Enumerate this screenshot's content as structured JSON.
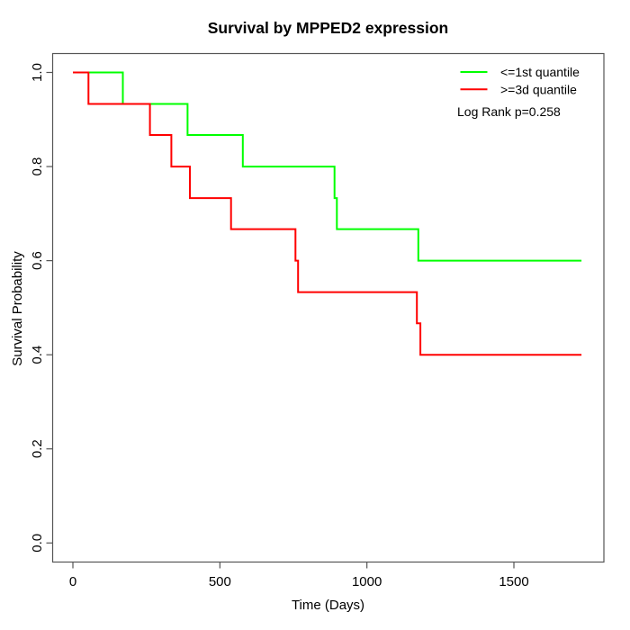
{
  "chart_data": {
    "type": "line",
    "subtype": "kaplan-meier-step",
    "title": "Survival by MPPED2 expression",
    "xlabel": "Time (Days)",
    "ylabel": "Survival Probability",
    "xlim": [
      0,
      1736
    ],
    "ylim": [
      0.0,
      1.0
    ],
    "grid": false,
    "x_ticks": [
      "0",
      "500",
      "1000",
      "1500"
    ],
    "y_ticks": [
      "0.0",
      "0.2",
      "0.4",
      "0.6",
      "0.8",
      "1.0"
    ],
    "legend_position": "top-right",
    "series": [
      {
        "name": "<=1st quantile",
        "color": "#00FF00",
        "points": [
          [
            0,
            1.0
          ],
          [
            170,
            0.933
          ],
          [
            390,
            0.867
          ],
          [
            578,
            0.8
          ],
          [
            890,
            0.733
          ],
          [
            898,
            0.667
          ],
          [
            1175,
            0.6
          ]
        ],
        "end_time": 1730
      },
      {
        "name": ">=3d quantile",
        "color": "#FF0000",
        "points": [
          [
            0,
            1.0
          ],
          [
            53,
            0.933
          ],
          [
            262,
            0.867
          ],
          [
            335,
            0.8
          ],
          [
            398,
            0.733
          ],
          [
            538,
            0.667
          ],
          [
            757,
            0.6
          ],
          [
            766,
            0.533
          ],
          [
            1170,
            0.467
          ],
          [
            1182,
            0.4
          ]
        ],
        "end_time": 1730
      }
    ]
  },
  "legend": {
    "items": [
      {
        "label": "<=1st quantile",
        "color": "#00FF00"
      },
      {
        "label": ">=3d quantile",
        "color": "#FF0000"
      }
    ],
    "annotation": "Log Rank p=0.258"
  },
  "colors": {
    "low_quantile": "#00FF00",
    "high_quantile": "#FF0000",
    "axis": "#555555",
    "text": "#000000",
    "background": "#ffffff"
  }
}
